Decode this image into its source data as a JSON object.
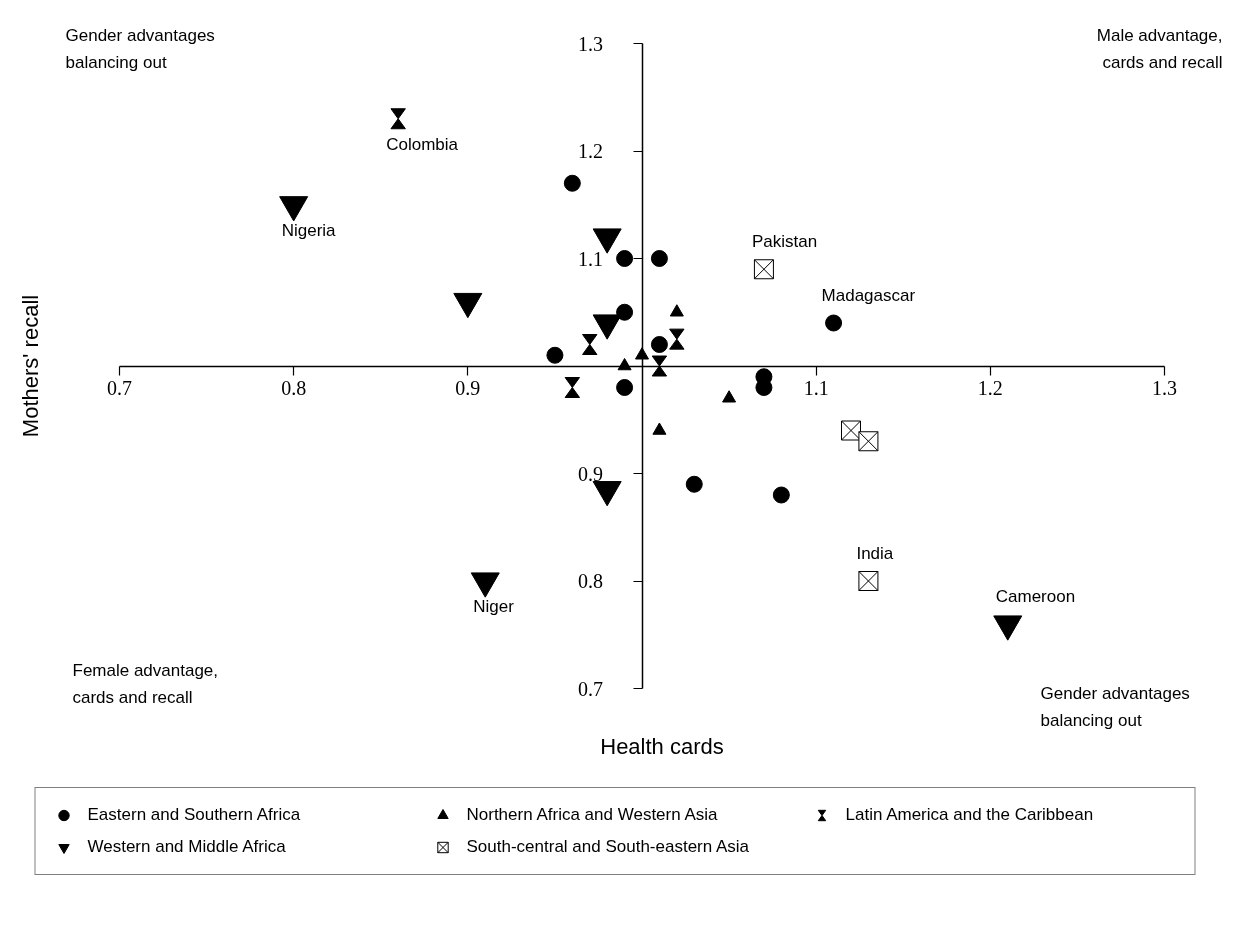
{
  "chart_data": {
    "type": "scatter",
    "xlabel": "Health cards",
    "ylabel": "Mothers' recall",
    "xlim": [
      0.7,
      1.3
    ],
    "ylim": [
      0.7,
      1.3
    ],
    "xticks": [
      0.7,
      0.8,
      0.9,
      1.1,
      1.2,
      1.3
    ],
    "yticks": [
      0.7,
      0.8,
      0.9,
      1.1,
      1.2,
      1.3
    ],
    "legend": "bottom",
    "series": [
      {
        "name": "Eastern and Southern Africa",
        "color": "#000000",
        "marker": "circle",
        "x": [
          0.96,
          0.99,
          1.01,
          0.99,
          1.01,
          0.95,
          0.99,
          1.07,
          1.07,
          1.08,
          1.03,
          1.11
        ],
        "values": [
          1.17,
          1.1,
          1.1,
          1.05,
          1.02,
          1.01,
          0.98,
          0.99,
          0.98,
          0.88,
          0.89,
          1.04
        ]
      },
      {
        "name": "Western and Middle Africa",
        "color": "#000000",
        "x": [
          0.8,
          0.9,
          0.98,
          0.98,
          0.98,
          0.91,
          1.21
        ],
        "values": [
          1.15,
          1.06,
          1.12,
          1.04,
          0.885,
          0.8,
          0.76
        ]
      },
      {
        "name": "Northern Africa and Western Asia",
        "color": "#000000",
        "marker": "triangle",
        "x": [
          1.02,
          1.0,
          0.99,
          1.05,
          1.01
        ],
        "values": [
          1.05,
          1.01,
          1.0,
          0.97,
          0.94
        ]
      },
      {
        "name": "South-central and South-eastern Asia",
        "color": "#000000",
        "x": [
          1.07,
          1.12,
          1.13,
          1.13
        ],
        "values": [
          1.09,
          0.94,
          0.93,
          0.8
        ]
      },
      {
        "name": "Latin America and the Caribbean",
        "color": "#000000",
        "x": [
          0.86,
          0.97,
          0.96,
          1.02,
          1.01
        ],
        "values": [
          1.23,
          1.02,
          0.98,
          1.025,
          1.0
        ]
      }
    ],
    "annotations": [
      "Gender advantages balancing out",
      "Male advantage, cards and recall",
      "Female advantage, cards and recall",
      "Gender advantages balancing out",
      {
        "text": "Colombia",
        "x": 0.86,
        "y": 1.23
      },
      {
        "text": "Nigeria",
        "x": 0.8,
        "y": 1.15
      },
      {
        "text": "Niger",
        "x": 0.91,
        "y": 0.8
      },
      {
        "text": "Pakistan",
        "x": 1.07,
        "y": 1.09
      },
      {
        "text": "Madagascar",
        "x": 1.11,
        "y": 1.04
      },
      {
        "text": "India",
        "x": 1.13,
        "y": 0.8
      },
      {
        "text": "Cameroon",
        "x": 1.21,
        "y": 0.76
      }
    ]
  }
}
